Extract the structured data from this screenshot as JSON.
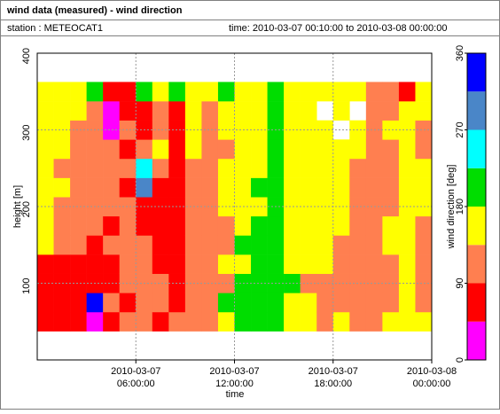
{
  "header": {
    "title": "wind data (measured) - wind direction",
    "station": "station : METEOCAT1",
    "time": "time: 2010-03-07 00:10:00 to 2010-03-08 00:00:00"
  },
  "chart_data": {
    "type": "heatmap",
    "xlabel": "time",
    "ylabel": "height [m]",
    "xlim": [
      0,
      24
    ],
    "xticks": [
      {
        "value": 6,
        "label": [
          "2010-03-07",
          "06:00:00"
        ]
      },
      {
        "value": 12,
        "label": [
          "2010-03-07",
          "12:00:00"
        ]
      },
      {
        "value": 18,
        "label": [
          "2010-03-07",
          "18:00:00"
        ]
      },
      {
        "value": 24,
        "label": [
          "2010-03-08",
          "00:00:00"
        ]
      }
    ],
    "ylim": [
      0,
      400
    ],
    "yticks": [
      100,
      200,
      300,
      400
    ],
    "grid": true,
    "x": [
      0.5,
      1.5,
      2.5,
      3.5,
      4.5,
      5.5,
      6.5,
      7.5,
      8.5,
      9.5,
      10.5,
      11.5,
      12.5,
      13.5,
      14.5,
      15.5,
      16.5,
      17.5,
      18.5,
      19.5,
      20.5,
      21.5,
      22.5,
      23.5
    ],
    "y": [
      50,
      75,
      100,
      125,
      150,
      175,
      200,
      225,
      250,
      275,
      300,
      325,
      350
    ],
    "cell_height": 25,
    "cell_width": 1,
    "values": [
      [
        60,
        60,
        60,
        60,
        160,
        160,
        160,
        160,
        160,
        160,
        160,
        160,
        160
      ],
      [
        60,
        60,
        60,
        60,
        110,
        110,
        110,
        160,
        110,
        160,
        160,
        160,
        160
      ],
      [
        60,
        60,
        60,
        60,
        110,
        110,
        110,
        110,
        110,
        110,
        110,
        160,
        160
      ],
      [
        20,
        340,
        60,
        60,
        60,
        110,
        110,
        110,
        110,
        110,
        110,
        110,
        200
      ],
      [
        60,
        110,
        60,
        60,
        110,
        60,
        110,
        110,
        110,
        110,
        20,
        20,
        60
      ],
      [
        110,
        60,
        110,
        110,
        110,
        110,
        110,
        60,
        110,
        60,
        110,
        60,
        60
      ],
      [
        110,
        110,
        110,
        110,
        110,
        60,
        60,
        290,
        250,
        110,
        60,
        60,
        200
      ],
      [
        60,
        110,
        110,
        60,
        60,
        60,
        60,
        60,
        110,
        160,
        110,
        110,
        160
      ],
      [
        110,
        60,
        60,
        60,
        60,
        60,
        60,
        60,
        60,
        60,
        60,
        60,
        200
      ],
      [
        110,
        110,
        110,
        110,
        110,
        110,
        110,
        110,
        110,
        160,
        160,
        160,
        160
      ],
      [
        110,
        110,
        110,
        110,
        110,
        110,
        110,
        110,
        110,
        110,
        110,
        110,
        160
      ],
      [
        160,
        200,
        110,
        160,
        110,
        110,
        160,
        160,
        160,
        110,
        160,
        160,
        200
      ],
      [
        200,
        200,
        200,
        160,
        200,
        160,
        160,
        160,
        160,
        160,
        160,
        160,
        160
      ],
      [
        200,
        200,
        200,
        200,
        200,
        200,
        160,
        200,
        160,
        160,
        160,
        160,
        160
      ],
      [
        200,
        200,
        200,
        200,
        200,
        200,
        200,
        200,
        200,
        200,
        200,
        200,
        200
      ],
      [
        160,
        160,
        200,
        160,
        160,
        160,
        160,
        160,
        160,
        160,
        160,
        160,
        160
      ],
      [
        160,
        160,
        110,
        160,
        160,
        160,
        160,
        160,
        160,
        160,
        160,
        160,
        160
      ],
      [
        110,
        110,
        110,
        160,
        160,
        160,
        160,
        160,
        160,
        160,
        160,
        null,
        160
      ],
      [
        160,
        110,
        110,
        110,
        110,
        160,
        160,
        160,
        160,
        160,
        null,
        160,
        160
      ],
      [
        110,
        110,
        110,
        110,
        110,
        110,
        110,
        110,
        110,
        160,
        160,
        null,
        160
      ],
      [
        110,
        110,
        110,
        110,
        110,
        110,
        110,
        110,
        110,
        110,
        110,
        110,
        110
      ],
      [
        160,
        110,
        110,
        110,
        160,
        160,
        110,
        110,
        110,
        110,
        160,
        110,
        110
      ],
      [
        160,
        160,
        160,
        160,
        160,
        160,
        160,
        160,
        160,
        160,
        160,
        160,
        60
      ],
      [
        160,
        110,
        110,
        110,
        110,
        110,
        160,
        160,
        160,
        110,
        110,
        160,
        160
      ]
    ],
    "colorbar": {
      "label": "wind direction [deg]",
      "lim": [
        0,
        360
      ],
      "ticks": [
        0,
        90,
        180,
        270,
        360
      ],
      "bounds": [
        0,
        45,
        90,
        135,
        180,
        225,
        270,
        315,
        360
      ],
      "colors": [
        "#ff00ff",
        "#ff0000",
        "#ff7f50",
        "#ffff00",
        "#00dd00",
        "#00ffff",
        "#4a86c8",
        "#0000ff"
      ]
    }
  }
}
